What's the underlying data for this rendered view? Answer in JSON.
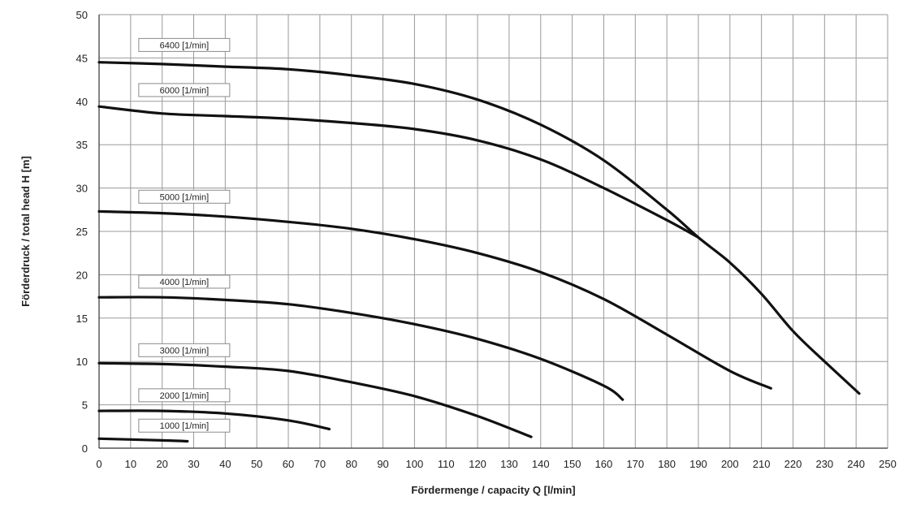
{
  "chart_data": {
    "type": "line",
    "title": "",
    "xlabel": "Fördermenge / capacity  Q [l/min]",
    "ylabel": "Förderdruck / total head  H [m]",
    "xlim": [
      0,
      250
    ],
    "ylim": [
      0,
      50
    ],
    "xticks": [
      0,
      10,
      20,
      30,
      40,
      50,
      60,
      70,
      80,
      90,
      100,
      110,
      120,
      130,
      140,
      150,
      160,
      170,
      180,
      190,
      200,
      210,
      220,
      230,
      240,
      250
    ],
    "yticks": [
      0,
      5,
      10,
      15,
      20,
      25,
      30,
      35,
      40,
      45,
      50
    ],
    "grid": true,
    "legend": "inline labels at left of each curve",
    "line_color": "#111111",
    "grid_color": "#9a9a9a",
    "series": [
      {
        "name": "6400 [1/min]",
        "x": [
          0,
          20,
          40,
          60,
          80,
          100,
          120,
          140,
          160,
          180,
          190,
          200,
          210,
          220,
          230,
          241
        ],
        "y": [
          44.5,
          44.3,
          44.0,
          43.7,
          43.0,
          42.0,
          40.2,
          37.3,
          33.2,
          27.5,
          24.3,
          21.4,
          17.8,
          13.5,
          10.0,
          6.3
        ]
      },
      {
        "name": "6000 [1/min]",
        "x": [
          0,
          20,
          40,
          60,
          80,
          100,
          120,
          140,
          160,
          180,
          190
        ],
        "y": [
          39.4,
          38.6,
          38.3,
          38.0,
          37.5,
          36.8,
          35.5,
          33.3,
          30.0,
          26.3,
          24.3
        ]
      },
      {
        "name": "5000 [1/min]",
        "x": [
          0,
          20,
          40,
          60,
          80,
          100,
          120,
          140,
          160,
          180,
          200,
          213
        ],
        "y": [
          27.3,
          27.1,
          26.7,
          26.1,
          25.3,
          24.1,
          22.5,
          20.3,
          17.2,
          13.1,
          8.9,
          6.9
        ]
      },
      {
        "name": "4000 [1/min]",
        "x": [
          0,
          20,
          40,
          60,
          80,
          100,
          120,
          140,
          160,
          166
        ],
        "y": [
          17.4,
          17.4,
          17.1,
          16.6,
          15.6,
          14.3,
          12.6,
          10.3,
          7.2,
          5.6
        ]
      },
      {
        "name": "3000 [1/min]",
        "x": [
          0,
          20,
          40,
          60,
          80,
          100,
          120,
          137
        ],
        "y": [
          9.8,
          9.7,
          9.4,
          8.9,
          7.6,
          6.0,
          3.7,
          1.3
        ]
      },
      {
        "name": "2000 [1/min]",
        "x": [
          0,
          20,
          40,
          60,
          73
        ],
        "y": [
          4.3,
          4.3,
          4.0,
          3.2,
          2.2
        ]
      },
      {
        "name": "1000 [1/min]",
        "x": [
          0,
          10,
          20,
          28
        ],
        "y": [
          1.1,
          1.0,
          0.9,
          0.8
        ]
      }
    ],
    "labels": [
      {
        "text": "6400 [1/min]",
        "x": 27,
        "y": 46.5
      },
      {
        "text": "6000 [1/min]",
        "x": 27,
        "y": 41.3
      },
      {
        "text": "5000 [1/min]",
        "x": 27,
        "y": 29.0
      },
      {
        "text": "4000 [1/min]",
        "x": 27,
        "y": 19.2
      },
      {
        "text": "3000 [1/min]",
        "x": 27,
        "y": 11.3
      },
      {
        "text": "2000 [1/min]",
        "x": 27,
        "y": 6.1
      },
      {
        "text": "1000 [1/min]",
        "x": 27,
        "y": 2.6
      }
    ]
  }
}
